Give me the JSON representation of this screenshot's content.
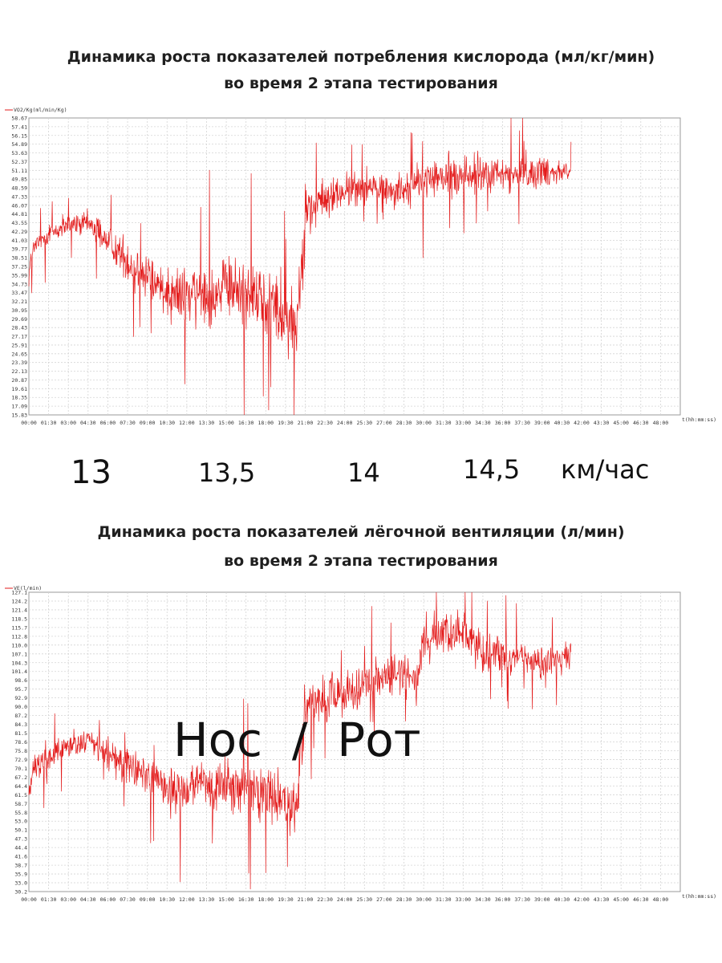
{
  "chart_data": [
    {
      "type": "line",
      "title_line1": "Динамика роста показателей потребления кислорода (мл/кг/мин)",
      "title_line2": "во время 2 этапа тестирования",
      "legend": "VO2/Kg(ml/min/Kg)",
      "xlabel": "t(hh:mm:ss)",
      "ylim": [
        15.83,
        58.67
      ],
      "xlim_minutes": [
        0,
        49.5
      ],
      "y_ticks": [
        "58.67",
        "57.41",
        "56.15",
        "54.89",
        "53.63",
        "52.37",
        "51.11",
        "49.85",
        "48.59",
        "47.33",
        "46.07",
        "44.81",
        "43.55",
        "42.29",
        "41.03",
        "39.77",
        "38.51",
        "37.25",
        "35.99",
        "34.73",
        "33.47",
        "32.21",
        "30.95",
        "29.69",
        "28.43",
        "27.17",
        "25.91",
        "24.65",
        "23.39",
        "22.13",
        "20.87",
        "19.61",
        "18.35",
        "17.09",
        "15.83"
      ],
      "x_ticks": [
        "00:00",
        "01:30",
        "03:00",
        "04:30",
        "06:00",
        "07:30",
        "09:00",
        "10:30",
        "12:00",
        "13:30",
        "15:00",
        "16:30",
        "18:00",
        "19:30",
        "21:00",
        "22:30",
        "24:00",
        "25:30",
        "27:00",
        "28:30",
        "30:00",
        "31:30",
        "33:00",
        "34:30",
        "36:00",
        "37:30",
        "39:00",
        "40:30",
        "42:00",
        "43:30",
        "45:00",
        "46:30",
        "48:00"
      ],
      "series": [
        {
          "name": "VO2/Kg",
          "color": "#e31b1b",
          "x": [
            0,
            0.4,
            1.5,
            3,
            4.5,
            5.5,
            6,
            7.5,
            9,
            10.5,
            12,
            13.5,
            15,
            16.5,
            18,
            19,
            20,
            20.3,
            21,
            22.5,
            24,
            25.5,
            27,
            28.5,
            30,
            31.5,
            33,
            34.5,
            36,
            37.5,
            39,
            40.5,
            41.2
          ],
          "mean": [
            36.5,
            40,
            42,
            43,
            43.5,
            42,
            41,
            38,
            35.5,
            34,
            32.8,
            33.5,
            34,
            33.8,
            32.5,
            31,
            29.5,
            28,
            45,
            47,
            48,
            48.8,
            48.5,
            48.2,
            49.5,
            50.2,
            50.5,
            50.3,
            50.4,
            50.6,
            51,
            51,
            51.2
          ],
          "noise": [
            2,
            1.5,
            1.5,
            1.5,
            1.5,
            1.8,
            2,
            2.5,
            3,
            3.5,
            4,
            4,
            4,
            4.2,
            4.5,
            5,
            5,
            5,
            2.5,
            2.5,
            2.2,
            2,
            2,
            2.2,
            2.5,
            2.5,
            2.5,
            2.5,
            2.5,
            2.2,
            2,
            1.5,
            1.2
          ]
        }
      ]
    },
    {
      "type": "line",
      "title_line1": "Динамика роста показателей лёгочной вентиляции (л/мин)",
      "title_line2": "во время 2 этапа тестирования",
      "legend": "VE(l/min)",
      "xlabel": "t(hh:mm:ss)",
      "ylim": [
        30.2,
        127.1
      ],
      "xlim_minutes": [
        0,
        49.5
      ],
      "y_ticks": [
        "127.1",
        "124.2",
        "121.4",
        "118.5",
        "115.7",
        "112.8",
        "110.0",
        "107.1",
        "104.3",
        "101.4",
        "98.6",
        "95.7",
        "92.9",
        "90.0",
        "87.2",
        "84.3",
        "81.5",
        "78.6",
        "75.8",
        "72.9",
        "70.1",
        "67.2",
        "64.4",
        "61.5",
        "58.7",
        "55.8",
        "53.0",
        "50.1",
        "47.3",
        "44.4",
        "41.6",
        "38.7",
        "35.9",
        "33.0",
        "30.2"
      ],
      "x_ticks": [
        "00:00",
        "01:30",
        "03:00",
        "04:30",
        "06:00",
        "07:30",
        "09:00",
        "10:30",
        "12:00",
        "13:30",
        "15:00",
        "16:30",
        "18:00",
        "19:30",
        "21:00",
        "22:30",
        "24:00",
        "25:30",
        "27:00",
        "28:30",
        "30:00",
        "31:30",
        "33:00",
        "34:30",
        "36:00",
        "37:30",
        "39:00",
        "40:30",
        "42:00",
        "43:30",
        "45:00",
        "46:30",
        "48:00"
      ],
      "series": [
        {
          "name": "VE",
          "color": "#e31b1b",
          "x": [
            0,
            0.4,
            1.5,
            3,
            4.5,
            5.5,
            6,
            7.5,
            9,
            10.5,
            12,
            13.5,
            15,
            16.5,
            18,
            19,
            20,
            20.3,
            21,
            22.5,
            24,
            25.5,
            27,
            28.5,
            29.5,
            30,
            31.5,
            33,
            34.5,
            36,
            37.5,
            39,
            40.5,
            41.2
          ],
          "mean": [
            62,
            70,
            74,
            77,
            79,
            76,
            74,
            71,
            68,
            64,
            63,
            64,
            65,
            64,
            62,
            60,
            58,
            56,
            90,
            92,
            95,
            98,
            99,
            100,
            98,
            112,
            114,
            114,
            107,
            108,
            106,
            104,
            105,
            106
          ],
          "noise": [
            4,
            3.5,
            3.5,
            3.5,
            3.5,
            4,
            4.5,
            5,
            6,
            7,
            7,
            7.5,
            7.5,
            7.5,
            8,
            8,
            8,
            8,
            6,
            6,
            6,
            5.5,
            5.5,
            6,
            6,
            5.5,
            5.5,
            6,
            5.5,
            5,
            5,
            4.5,
            4,
            4
          ]
        }
      ]
    }
  ],
  "speed_labels": [
    "13",
    "13,5",
    "14",
    "14,5",
    "км/час"
  ],
  "overlay_text": "Нос  /  Рот"
}
